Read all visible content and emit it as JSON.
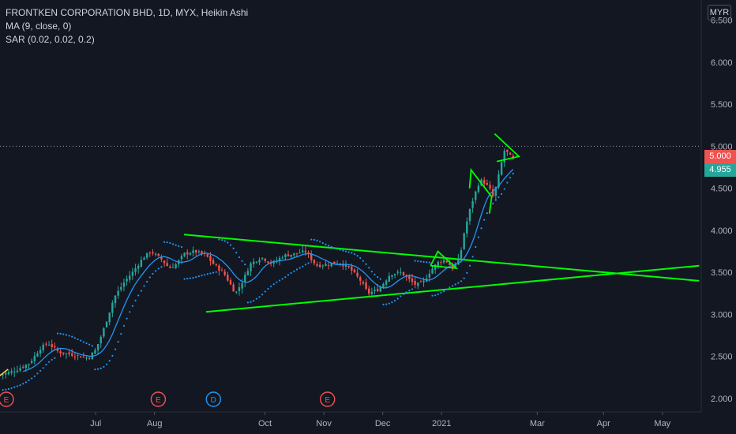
{
  "legend": {
    "title": "FRONTKEN CORPORATION BHD, 1D, MYX, Heikin Ashi",
    "ma": "MA (9, close, 0)",
    "sar": "SAR (0.02, 0.02, 0.2)"
  },
  "currency": "MYR",
  "last_price": "5.000",
  "ma_price": "4.955",
  "colors": {
    "background": "#131722",
    "up": "#26a69a",
    "down": "#ef5350",
    "ma": "#2196f3",
    "sar": "#2196f3",
    "trendline": "#00ff00"
  },
  "chart_data": {
    "type": "candlestick",
    "style": "Heikin Ashi",
    "y_ticks": [
      "6.500",
      "6.000",
      "5.500",
      "5.000",
      "4.500",
      "4.000",
      "3.500",
      "3.000",
      "2.500",
      "2.000"
    ],
    "ylim": [
      1.95,
      6.75
    ],
    "x_ticks": [
      {
        "label": "Jul",
        "x": 0.13
      },
      {
        "label": "Aug",
        "x": 0.21
      },
      {
        "label": "Oct",
        "x": 0.36
      },
      {
        "label": "Nov",
        "x": 0.44
      },
      {
        "label": "Dec",
        "x": 0.52
      },
      {
        "label": "2021",
        "x": 0.6
      },
      {
        "label": "Mar",
        "x": 0.73
      },
      {
        "label": "Apr",
        "x": 0.82
      },
      {
        "label": "May",
        "x": 0.9
      }
    ],
    "close_path": [
      [
        0.0,
        2.28
      ],
      [
        0.02,
        2.33
      ],
      [
        0.04,
        2.42
      ],
      [
        0.055,
        2.6
      ],
      [
        0.065,
        2.66
      ],
      [
        0.08,
        2.55
      ],
      [
        0.1,
        2.52
      ],
      [
        0.12,
        2.48
      ],
      [
        0.13,
        2.58
      ],
      [
        0.14,
        2.8
      ],
      [
        0.155,
        3.2
      ],
      [
        0.17,
        3.4
      ],
      [
        0.18,
        3.5
      ],
      [
        0.195,
        3.68
      ],
      [
        0.205,
        3.75
      ],
      [
        0.22,
        3.65
      ],
      [
        0.23,
        3.55
      ],
      [
        0.24,
        3.6
      ],
      [
        0.25,
        3.72
      ],
      [
        0.265,
        3.75
      ],
      [
        0.28,
        3.7
      ],
      [
        0.29,
        3.6
      ],
      [
        0.305,
        3.48
      ],
      [
        0.32,
        3.25
      ],
      [
        0.33,
        3.4
      ],
      [
        0.34,
        3.6
      ],
      [
        0.355,
        3.68
      ],
      [
        0.37,
        3.6
      ],
      [
        0.385,
        3.7
      ],
      [
        0.4,
        3.72
      ],
      [
        0.415,
        3.75
      ],
      [
        0.43,
        3.58
      ],
      [
        0.445,
        3.6
      ],
      [
        0.46,
        3.62
      ],
      [
        0.475,
        3.55
      ],
      [
        0.49,
        3.4
      ],
      [
        0.5,
        3.25
      ],
      [
        0.515,
        3.3
      ],
      [
        0.53,
        3.48
      ],
      [
        0.545,
        3.5
      ],
      [
        0.555,
        3.42
      ],
      [
        0.565,
        3.35
      ],
      [
        0.575,
        3.38
      ],
      [
        0.585,
        3.52
      ],
      [
        0.595,
        3.62
      ],
      [
        0.605,
        3.65
      ],
      [
        0.615,
        3.55
      ],
      [
        0.625,
        3.68
      ],
      [
        0.63,
        3.95
      ],
      [
        0.64,
        4.3
      ],
      [
        0.65,
        4.55
      ],
      [
        0.655,
        4.6
      ],
      [
        0.665,
        4.5
      ],
      [
        0.67,
        4.4
      ],
      [
        0.675,
        4.55
      ],
      [
        0.68,
        4.75
      ],
      [
        0.685,
        4.95
      ],
      [
        0.69,
        4.92
      ],
      [
        0.695,
        4.86
      ],
      [
        0.7,
        4.82
      ]
    ],
    "trendlines": [
      {
        "name": "upper",
        "from": [
          0.25,
          3.95
        ],
        "to": [
          0.95,
          3.4
        ]
      },
      {
        "name": "lower",
        "from": [
          0.28,
          3.03
        ],
        "to": [
          0.95,
          3.58
        ]
      }
    ],
    "events": [
      {
        "label": "E",
        "x": 0.005
      },
      {
        "label": "E",
        "x": 0.215
      },
      {
        "label": "D",
        "x": 0.29
      },
      {
        "label": "E",
        "x": 0.445
      }
    ],
    "grid": false
  }
}
